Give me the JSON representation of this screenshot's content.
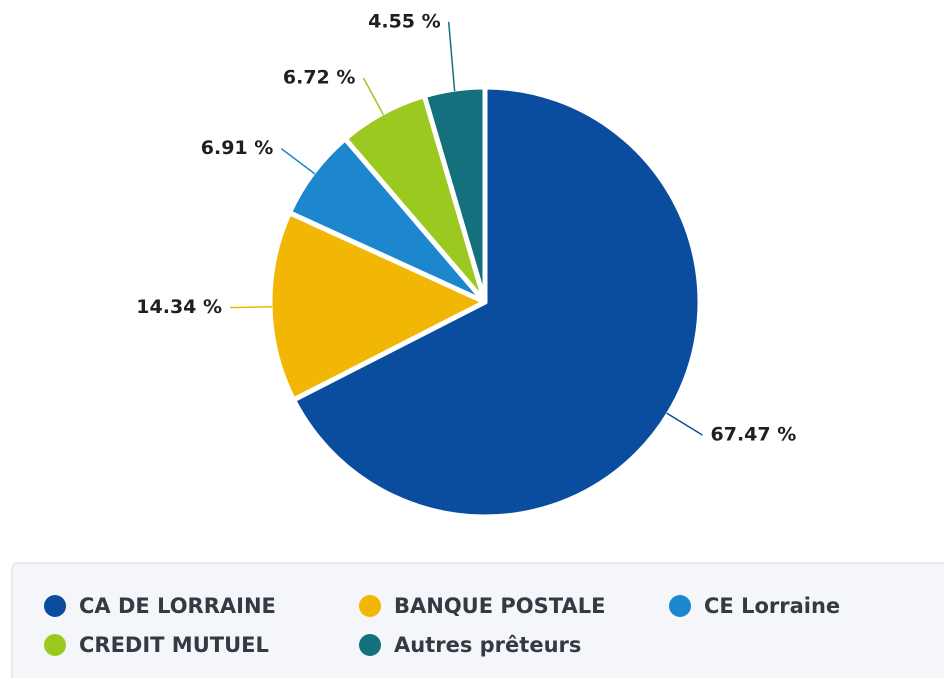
{
  "chart_data": {
    "type": "pie",
    "categories": [
      "CA DE LORRAINE",
      "BANQUE POSTALE",
      "CE Lorraine",
      "CREDIT MUTUEL",
      "Autres prêteurs"
    ],
    "values": [
      67.47,
      14.34,
      6.91,
      6.72,
      4.55
    ],
    "value_labels": [
      "67.47 %",
      "14.34 %",
      "6.91 %",
      "6.72 %",
      "4.55 %"
    ],
    "colors": [
      "#0a4d9e",
      "#f2b705",
      "#1c86cf",
      "#9cc920",
      "#15707e"
    ],
    "legend": "bottom"
  }
}
